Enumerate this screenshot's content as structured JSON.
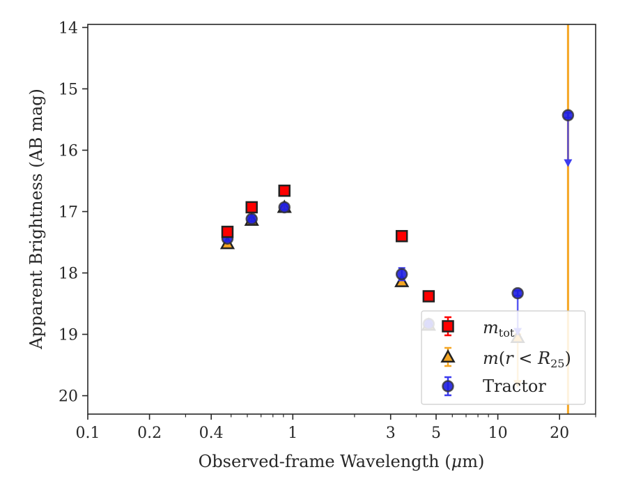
{
  "chart_data": {
    "type": "scatter",
    "xlabel": "Observed-frame Wavelength (μm)",
    "xlabel_prefix": "Observed-frame Wavelength (",
    "xlabel_mu": "μ",
    "xlabel_suffix": "m)",
    "ylabel": "Apparent Brightness (AB mag)",
    "xscale": "log",
    "yaxis_inverted": true,
    "xlim": [
      0.1,
      30
    ],
    "ylim": [
      20.3,
      13.95
    ],
    "xticks": [
      {
        "value": 0.1,
        "label": "0.1"
      },
      {
        "value": 0.2,
        "label": "0.2"
      },
      {
        "value": 0.4,
        "label": "0.4"
      },
      {
        "value": 1,
        "label": "1"
      },
      {
        "value": 3,
        "label": "3"
      },
      {
        "value": 5,
        "label": "5"
      },
      {
        "value": 10,
        "label": "10"
      },
      {
        "value": 20,
        "label": "20"
      }
    ],
    "xminor_ticks": [
      0.3,
      0.5,
      0.6,
      0.7,
      0.8,
      0.9,
      2,
      4,
      6,
      7,
      8,
      9,
      30
    ],
    "yticks": [
      {
        "value": 14,
        "label": "14"
      },
      {
        "value": 15,
        "label": "15"
      },
      {
        "value": 16,
        "label": "16"
      },
      {
        "value": 17,
        "label": "17"
      },
      {
        "value": 18,
        "label": "18"
      },
      {
        "value": 19,
        "label": "19"
      },
      {
        "value": 20,
        "label": "20"
      }
    ],
    "vertical_line": {
      "x": 22,
      "color": "#f5a623"
    },
    "legend_position": "lower-right",
    "series": [
      {
        "name": "m_tot",
        "legend_main": "m",
        "legend_sub": "tot",
        "marker": "square",
        "color": "#ff0000",
        "errcolor": "#ff0000",
        "points": [
          {
            "x": 0.48,
            "y": 17.33,
            "err": 0.05
          },
          {
            "x": 0.63,
            "y": 16.93,
            "err": 0.04
          },
          {
            "x": 0.91,
            "y": 16.66,
            "err": 0.04
          },
          {
            "x": 3.4,
            "y": 17.4,
            "err": 0.04
          },
          {
            "x": 4.6,
            "y": 18.38,
            "err": 0.04
          }
        ]
      },
      {
        "name": "m(r < R25)",
        "legend_main": "m",
        "legend_paren_open": "(",
        "legend_r": "r",
        "legend_lt": " < ",
        "legend_R": "R",
        "legend_sub": "25",
        "legend_paren_close": ")",
        "marker": "triangle",
        "color": "#f5a623",
        "errcolor": "#f5a623",
        "points": [
          {
            "x": 0.48,
            "y": 17.52,
            "err": 0.04
          },
          {
            "x": 0.63,
            "y": 17.14,
            "err": 0.04
          },
          {
            "x": 0.91,
            "y": 16.93,
            "err": 0.04
          },
          {
            "x": 3.4,
            "y": 18.14,
            "err": 0.05
          },
          {
            "x": 4.6,
            "y": 18.85,
            "err": 0.05
          },
          {
            "x": 12.5,
            "y": 19.05,
            "err": 0.05,
            "upper_limit_to": 19.85
          }
        ]
      },
      {
        "name": "Tractor",
        "legend_main": "Tractor",
        "marker": "circle",
        "color": "#1f1fe0",
        "errcolor": "#3b3bef",
        "points": [
          {
            "x": 0.48,
            "y": 17.44,
            "err": 0.04
          },
          {
            "x": 0.63,
            "y": 17.12,
            "err": 0.04
          },
          {
            "x": 0.91,
            "y": 16.93,
            "err": 0.04
          },
          {
            "x": 3.4,
            "y": 18.02,
            "err": 0.1
          },
          {
            "x": 4.6,
            "y": 18.83,
            "err": 0.04
          },
          {
            "x": 12.5,
            "y": 18.33,
            "err": 0.04,
            "upper_limit_to": 19.0
          },
          {
            "x": 22,
            "y": 15.43,
            "err": 0.04,
            "upper_limit_to": 16.25
          }
        ]
      }
    ]
  }
}
